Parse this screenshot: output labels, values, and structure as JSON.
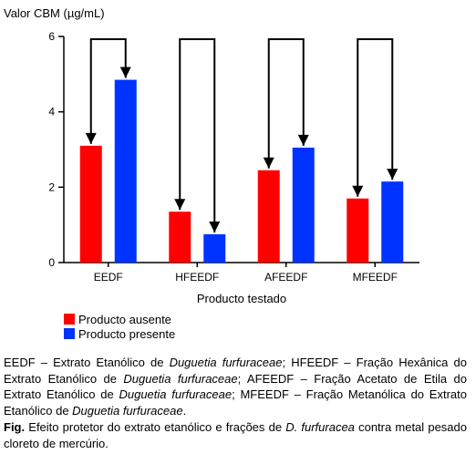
{
  "chart_data": {
    "type": "bar",
    "ylabel": "Valor CBM (µg/mL)",
    "xlabel": "Producto testado",
    "ylim": [
      0,
      6
    ],
    "yticks": [
      0,
      2,
      4,
      6
    ],
    "categories": [
      "EEDF",
      "HFEEDF",
      "AFEEDF",
      "MFEEDF"
    ],
    "series": [
      {
        "name": "Producto ausente",
        "color": "#ff0000",
        "values": [
          3.1,
          1.35,
          2.45,
          1.7
        ]
      },
      {
        "name": "Producto presente",
        "color": "#0033ff",
        "values": [
          4.85,
          0.75,
          3.05,
          2.15
        ]
      }
    ],
    "legend_position": "bottom-left",
    "grid": false,
    "annotations": "bracket arrows from top of each category pointing down to both bars"
  },
  "caption": {
    "abbreviations": [
      {
        "text": "EEDF – Extrato Etanólico de ",
        "em": false
      },
      {
        "text": "Duguetia furfuraceae",
        "em": true
      },
      {
        "text": "; HFEEDF – Fração Hexânica do Extrato Etanólico de ",
        "em": false
      },
      {
        "text": "Duguetia furfuraceae",
        "em": true
      },
      {
        "text": "; AFEEDF – Fração Acetato de Etila do Extrato Etanólico de ",
        "em": false
      },
      {
        "text": "Duguetia furfuraceae",
        "em": true
      },
      {
        "text": "; MFEEDF – Fração Metanólica do Extrato Etanólico de ",
        "em": false
      },
      {
        "text": "Duguetia furfuraceae",
        "em": true
      },
      {
        "text": ".",
        "em": false
      }
    ],
    "fig_label": "Fig.",
    "fig_text": [
      {
        "text": " Efeito protetor do extrato etanólico e frações de ",
        "em": false
      },
      {
        "text": "D. furfuracea",
        "em": true
      },
      {
        "text": " contra metal pesado cloreto de mercúrio.",
        "em": false
      }
    ]
  }
}
